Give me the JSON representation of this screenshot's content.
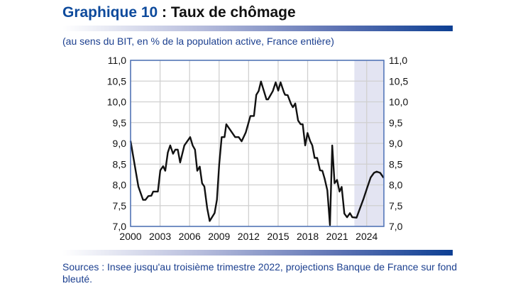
{
  "header": {
    "title_number": "Graphique 10",
    "title_text": " : Taux de chômage",
    "subtitle": "(au sens du BIT, en % de la population active, France entière)"
  },
  "footer": {
    "sources": "Sources : Insee jusqu'au troisième trimestre 2022, projections Banque de France sur fond bleuté."
  },
  "colors": {
    "title_accent": "#0d4a9c",
    "line": "#111111",
    "projection_shade": "#e3e4f2",
    "axis": "#4a6fb5",
    "grid": "#d0d0d0"
  },
  "chart_data": {
    "type": "line",
    "title": "",
    "xlabel": "",
    "ylabel": "",
    "xlim": [
      2000,
      2025.75
    ],
    "ylim": [
      7.0,
      11.0
    ],
    "grid": true,
    "x_ticks": [
      "2000",
      "2003",
      "2006",
      "2009",
      "2012",
      "2015",
      "2018",
      "2021",
      "2024"
    ],
    "y_ticks_left": [
      "7,0",
      "7,5",
      "8,0",
      "8,5",
      "9,0",
      "9,5",
      "10,0",
      "10,5",
      "11,0"
    ],
    "y_ticks_right": [
      "7,0",
      "7,5",
      "8,0",
      "8,5",
      "9,0",
      "9,5",
      "10,0",
      "10,5",
      "11,0"
    ],
    "projection_shaded_from": 2022.75,
    "series": [
      {
        "x": [
          2000.0,
          2000.79,
          2001.27,
          2001.51,
          2001.8,
          2002.11,
          2002.3,
          2002.78,
          2003.02,
          2003.31,
          2003.53,
          2003.79,
          2004.03,
          2004.32,
          2004.55,
          2004.8,
          2005.04,
          2005.47,
          2006.06,
          2006.31,
          2006.55,
          2006.78,
          2007.03,
          2007.27,
          2007.5,
          2007.79,
          2008.04,
          2008.54,
          2008.78,
          2009.01,
          2009.26,
          2009.55,
          2009.73,
          2010.63,
          2010.99,
          2011.29,
          2011.71,
          2012.18,
          2012.54,
          2012.78,
          2013.02,
          2013.26,
          2013.81,
          2013.98,
          2014.46,
          2014.75,
          2015.01,
          2015.25,
          2015.59,
          2015.71,
          2015.97,
          2016.31,
          2016.5,
          2016.74,
          2017.03,
          2017.29,
          2017.5,
          2017.75,
          2017.99,
          2018.25,
          2018.47,
          2018.71,
          2018.97,
          2019.26,
          2019.5,
          2019.73,
          2020.0,
          2020.27,
          2020.5,
          2020.74,
          2020.99,
          2021.24,
          2021.46,
          2021.73,
          2022.01,
          2022.3,
          2022.54,
          2022.97,
          2023.3,
          2023.69,
          2024.05,
          2024.41,
          2024.75,
          2025.01,
          2025.37,
          2025.73
        ],
        "values": [
          9.06,
          7.96,
          7.64,
          7.64,
          7.73,
          7.74,
          7.84,
          7.84,
          8.35,
          8.45,
          8.34,
          8.78,
          8.95,
          8.75,
          8.85,
          8.85,
          8.54,
          8.95,
          9.15,
          8.95,
          8.85,
          8.34,
          8.44,
          8.04,
          7.96,
          7.44,
          7.13,
          7.32,
          7.64,
          8.49,
          9.15,
          9.15,
          9.46,
          9.15,
          9.15,
          9.05,
          9.26,
          9.66,
          9.66,
          10.17,
          10.26,
          10.49,
          10.06,
          10.06,
          10.26,
          10.47,
          10.27,
          10.47,
          10.23,
          10.17,
          10.16,
          9.95,
          9.87,
          9.96,
          9.55,
          9.46,
          9.46,
          8.95,
          9.25,
          9.06,
          8.95,
          8.65,
          8.65,
          8.35,
          8.34,
          8.15,
          7.87,
          7.03,
          8.95,
          8.04,
          8.12,
          7.84,
          7.95,
          7.31,
          7.22,
          7.32,
          7.22,
          7.21,
          7.42,
          7.67,
          7.93,
          8.18,
          8.29,
          8.32,
          8.29,
          8.17
        ]
      }
    ]
  }
}
